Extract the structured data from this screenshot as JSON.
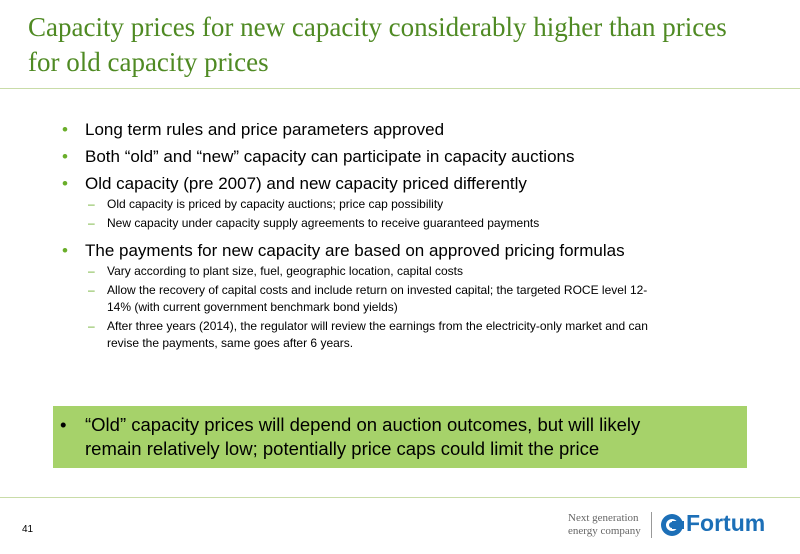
{
  "header": {
    "title_lines": [
      "Capacity prices for new capacity considerably higher than prices",
      "for old capacity prices"
    ]
  },
  "bullets": [
    {
      "text": "Long term rules and price parameters approved",
      "sub": []
    },
    {
      "text": "Both “old” and “new” capacity can participate in capacity auctions",
      "sub": []
    },
    {
      "text": "Old capacity (pre 2007) and new capacity priced differently",
      "sub": [
        [
          "Old capacity is priced by capacity auctions; price cap possibility"
        ],
        [
          "New capacity under capacity supply agreements to receive guaranteed payments"
        ]
      ]
    },
    {
      "text": "The payments for new capacity are based on approved pricing formulas",
      "sub": [
        [
          "Vary according to plant size, fuel, geographic location, capital costs"
        ],
        [
          "Allow the recovery of capital costs and include return on invested capital; the targeted ROCE level 12-",
          "14% (with current government benchmark bond yields)"
        ],
        [
          "After three years (2014), the regulator will review the earnings from the electricity-only market and can",
          "revise the payments, same goes after 6 years."
        ]
      ]
    }
  ],
  "highlight": {
    "lines": [
      "“Old” capacity prices will depend on auction outcomes, but will likely",
      "remain relatively low; potentially price caps could limit the price"
    ]
  },
  "footer": {
    "page_number": "41",
    "tagline": [
      "Next generation",
      "energy company"
    ],
    "logo": "Fortum"
  }
}
